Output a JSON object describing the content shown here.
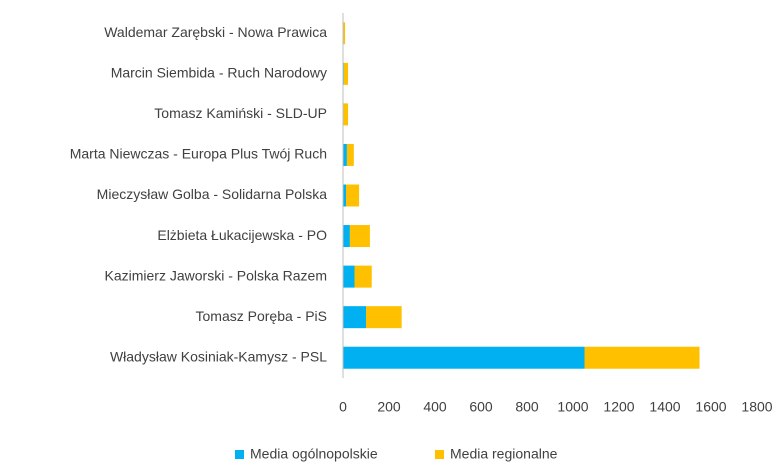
{
  "chart_data": {
    "type": "hbar-stacked",
    "categories": [
      "Waldemar Zarębski - Nowa Prawica",
      "Marcin Siembida - Ruch Narodowy",
      "Tomasz Kamiński - SLD-UP",
      "Marta Niewczas - Europa Plus Twój Ruch",
      "Mieczysław Golba - Solidarna Polska",
      "Elżbieta Łukacijewska - PO",
      "Kazimierz Jaworski - Polska Razem",
      "Tomasz Poręba - PiS",
      "Władysław Kosiniak-Kamysz - PSL"
    ],
    "series": [
      {
        "name": "Media ogólnopolskie",
        "color": "#00b0f0",
        "values": [
          0,
          4,
          2,
          17,
          13,
          30,
          50,
          100,
          1050
        ]
      },
      {
        "name": "Media regionalne",
        "color": "#ffc000",
        "values": [
          9,
          18,
          20,
          30,
          57,
          87,
          75,
          155,
          500
        ]
      }
    ],
    "xlim": [
      0,
      1800
    ],
    "xticks": [
      0,
      200,
      400,
      600,
      800,
      1000,
      1200,
      1400,
      1600,
      1800
    ],
    "legend": "bottom"
  }
}
